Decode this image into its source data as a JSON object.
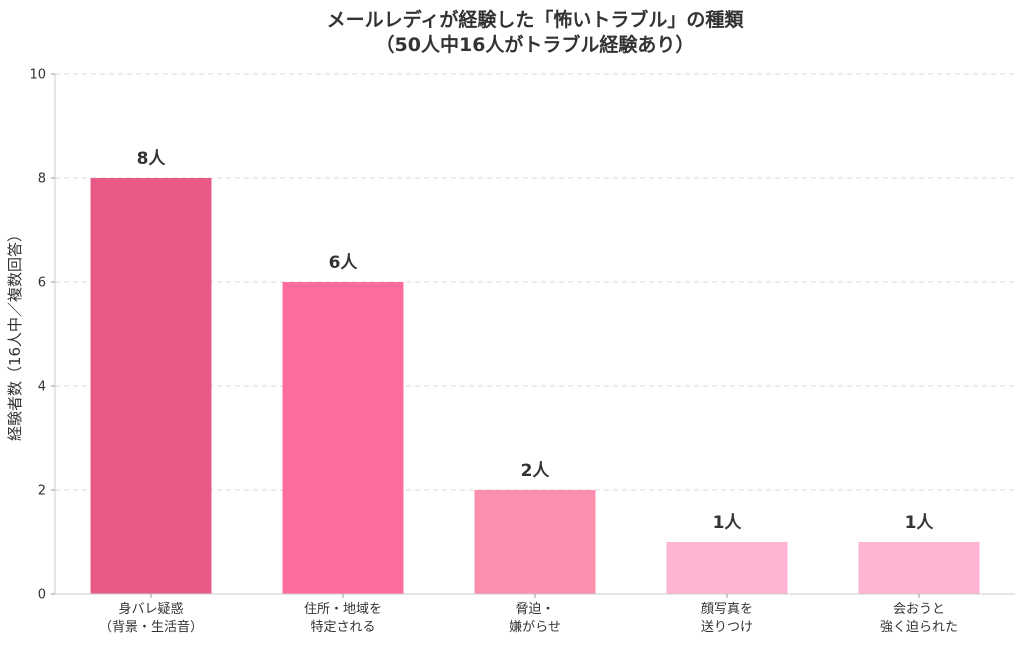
{
  "chart_data": {
    "type": "bar",
    "title": [
      "メールレディが経験した「怖いトラブル」の種類",
      "（50人中16人がトラブル経験あり）"
    ],
    "xlabel": "",
    "ylabel": "経験者数（16人中／複数回答）",
    "ylim": [
      0,
      10
    ],
    "yticks": [
      0,
      2,
      4,
      6,
      8,
      10
    ],
    "grid": true,
    "categories": [
      [
        "身バレ疑惑",
        "（背景・生活音）"
      ],
      [
        "住所・地域を",
        "特定される"
      ],
      [
        "脅迫・",
        "嫌がらせ"
      ],
      [
        "顔写真を",
        "送りつけ"
      ],
      [
        "会おうと",
        "強く迫られた"
      ]
    ],
    "values": [
      8,
      6,
      2,
      1,
      1
    ],
    "data_labels": [
      "8人",
      "6人",
      "2人",
      "1人",
      "1人"
    ],
    "colors": [
      "#e75a86",
      "#fd6c9c",
      "#fc8fae",
      "#feb5d3",
      "#feb5d3"
    ]
  }
}
